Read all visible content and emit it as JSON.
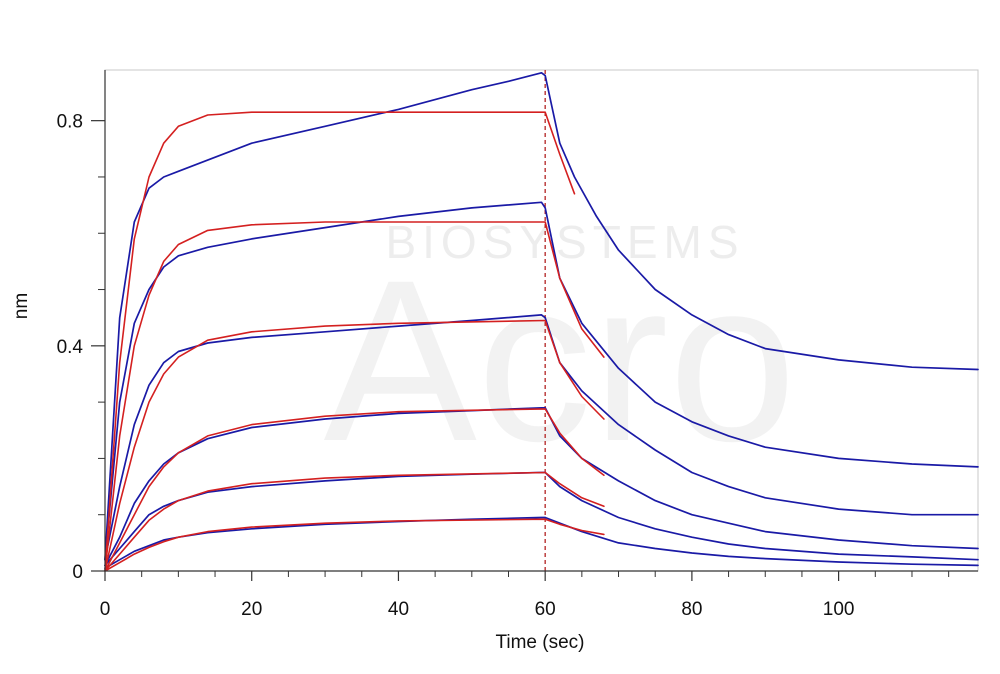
{
  "chart_data": {
    "type": "line",
    "title": "",
    "xlabel": "Time (sec)",
    "ylabel": "nm",
    "xlim": [
      0,
      119
    ],
    "ylim": [
      0,
      0.89
    ],
    "x_ticks": [
      0,
      20,
      40,
      60,
      80,
      100
    ],
    "x_tick_labels": [
      "0",
      "20",
      "40",
      "60",
      "80",
      "100"
    ],
    "y_ticks": [
      0,
      0.4,
      0.8
    ],
    "y_tick_labels": [
      "0",
      "0.4",
      "0.8"
    ],
    "grid": false,
    "legend": "none",
    "annotations": [
      {
        "type": "vertical-line",
        "x": 60,
        "style": "dashed",
        "color": "#b22222"
      }
    ],
    "watermark": {
      "brand": "Acro",
      "subtitle": "BIOSYSTEMS"
    },
    "colors": {
      "measured": "#1a1aa6",
      "fit": "#d42020",
      "axis": "#333333",
      "frame": "#c8c8c8"
    },
    "series": [
      {
        "name": "measured-1",
        "role": "measured",
        "points": [
          [
            0,
            0.02
          ],
          [
            2,
            0.45
          ],
          [
            4,
            0.62
          ],
          [
            6,
            0.68
          ],
          [
            8,
            0.7
          ],
          [
            10,
            0.71
          ],
          [
            14,
            0.73
          ],
          [
            20,
            0.76
          ],
          [
            30,
            0.79
          ],
          [
            40,
            0.82
          ],
          [
            50,
            0.855
          ],
          [
            55,
            0.87
          ],
          [
            59.5,
            0.885
          ],
          [
            60,
            0.88
          ],
          [
            62,
            0.76
          ],
          [
            64,
            0.7
          ],
          [
            67,
            0.63
          ],
          [
            70,
            0.57
          ],
          [
            75,
            0.5
          ],
          [
            80,
            0.455
          ],
          [
            85,
            0.42
          ],
          [
            90,
            0.395
          ],
          [
            100,
            0.375
          ],
          [
            110,
            0.362
          ],
          [
            119,
            0.358
          ]
        ]
      },
      {
        "name": "fit-1",
        "role": "fit",
        "points": [
          [
            0,
            0
          ],
          [
            2,
            0.37
          ],
          [
            4,
            0.59
          ],
          [
            6,
            0.7
          ],
          [
            8,
            0.76
          ],
          [
            10,
            0.79
          ],
          [
            14,
            0.81
          ],
          [
            20,
            0.815
          ],
          [
            40,
            0.815
          ],
          [
            60,
            0.815
          ],
          [
            62,
            0.74
          ],
          [
            64,
            0.67
          ]
        ]
      },
      {
        "name": "measured-2",
        "role": "measured",
        "points": [
          [
            0,
            0.02
          ],
          [
            2,
            0.3
          ],
          [
            4,
            0.44
          ],
          [
            6,
            0.5
          ],
          [
            8,
            0.54
          ],
          [
            10,
            0.56
          ],
          [
            14,
            0.575
          ],
          [
            20,
            0.59
          ],
          [
            30,
            0.61
          ],
          [
            40,
            0.63
          ],
          [
            50,
            0.645
          ],
          [
            59.5,
            0.655
          ],
          [
            60,
            0.645
          ],
          [
            62,
            0.52
          ],
          [
            65,
            0.44
          ],
          [
            70,
            0.36
          ],
          [
            75,
            0.3
          ],
          [
            80,
            0.265
          ],
          [
            85,
            0.24
          ],
          [
            90,
            0.22
          ],
          [
            100,
            0.2
          ],
          [
            110,
            0.19
          ],
          [
            119,
            0.185
          ]
        ]
      },
      {
        "name": "fit-2",
        "role": "fit",
        "points": [
          [
            0,
            0
          ],
          [
            2,
            0.24
          ],
          [
            4,
            0.4
          ],
          [
            6,
            0.49
          ],
          [
            8,
            0.55
          ],
          [
            10,
            0.58
          ],
          [
            14,
            0.605
          ],
          [
            20,
            0.615
          ],
          [
            30,
            0.62
          ],
          [
            40,
            0.62
          ],
          [
            60,
            0.62
          ],
          [
            62,
            0.52
          ],
          [
            65,
            0.43
          ],
          [
            68,
            0.38
          ]
        ]
      },
      {
        "name": "measured-3",
        "role": "measured",
        "points": [
          [
            0,
            0.02
          ],
          [
            2,
            0.15
          ],
          [
            4,
            0.26
          ],
          [
            6,
            0.33
          ],
          [
            8,
            0.37
          ],
          [
            10,
            0.39
          ],
          [
            14,
            0.405
          ],
          [
            20,
            0.415
          ],
          [
            30,
            0.425
          ],
          [
            40,
            0.435
          ],
          [
            50,
            0.445
          ],
          [
            59.5,
            0.455
          ],
          [
            60,
            0.45
          ],
          [
            62,
            0.37
          ],
          [
            65,
            0.32
          ],
          [
            70,
            0.26
          ],
          [
            75,
            0.215
          ],
          [
            80,
            0.175
          ],
          [
            85,
            0.15
          ],
          [
            90,
            0.13
          ],
          [
            100,
            0.11
          ],
          [
            110,
            0.1
          ],
          [
            119,
            0.1
          ]
        ]
      },
      {
        "name": "fit-3",
        "role": "fit",
        "points": [
          [
            0,
            0
          ],
          [
            2,
            0.12
          ],
          [
            4,
            0.22
          ],
          [
            6,
            0.3
          ],
          [
            8,
            0.35
          ],
          [
            10,
            0.38
          ],
          [
            14,
            0.41
          ],
          [
            20,
            0.425
          ],
          [
            30,
            0.435
          ],
          [
            40,
            0.44
          ],
          [
            60,
            0.445
          ],
          [
            62,
            0.37
          ],
          [
            65,
            0.31
          ],
          [
            68,
            0.27
          ]
        ]
      },
      {
        "name": "measured-4",
        "role": "measured",
        "points": [
          [
            0,
            0.01
          ],
          [
            2,
            0.06
          ],
          [
            4,
            0.12
          ],
          [
            6,
            0.16
          ],
          [
            8,
            0.19
          ],
          [
            10,
            0.21
          ],
          [
            14,
            0.235
          ],
          [
            20,
            0.255
          ],
          [
            30,
            0.27
          ],
          [
            40,
            0.28
          ],
          [
            50,
            0.285
          ],
          [
            59.5,
            0.29
          ],
          [
            60,
            0.29
          ],
          [
            62,
            0.24
          ],
          [
            65,
            0.2
          ],
          [
            70,
            0.16
          ],
          [
            75,
            0.125
          ],
          [
            80,
            0.1
          ],
          [
            85,
            0.085
          ],
          [
            90,
            0.07
          ],
          [
            100,
            0.055
          ],
          [
            110,
            0.045
          ],
          [
            119,
            0.04
          ]
        ]
      },
      {
        "name": "fit-4",
        "role": "fit",
        "points": [
          [
            0,
            0
          ],
          [
            2,
            0.05
          ],
          [
            4,
            0.1
          ],
          [
            6,
            0.15
          ],
          [
            8,
            0.185
          ],
          [
            10,
            0.21
          ],
          [
            14,
            0.24
          ],
          [
            20,
            0.26
          ],
          [
            30,
            0.275
          ],
          [
            40,
            0.283
          ],
          [
            60,
            0.288
          ],
          [
            62,
            0.245
          ],
          [
            65,
            0.2
          ],
          [
            68,
            0.17
          ]
        ]
      },
      {
        "name": "measured-5",
        "role": "measured",
        "points": [
          [
            0,
            0.01
          ],
          [
            2,
            0.04
          ],
          [
            4,
            0.07
          ],
          [
            6,
            0.1
          ],
          [
            8,
            0.115
          ],
          [
            10,
            0.125
          ],
          [
            14,
            0.14
          ],
          [
            20,
            0.15
          ],
          [
            30,
            0.16
          ],
          [
            40,
            0.168
          ],
          [
            50,
            0.172
          ],
          [
            59.5,
            0.175
          ],
          [
            60,
            0.175
          ],
          [
            62,
            0.15
          ],
          [
            65,
            0.125
          ],
          [
            70,
            0.095
          ],
          [
            75,
            0.075
          ],
          [
            80,
            0.06
          ],
          [
            85,
            0.048
          ],
          [
            90,
            0.04
          ],
          [
            100,
            0.03
          ],
          [
            110,
            0.025
          ],
          [
            119,
            0.02
          ]
        ]
      },
      {
        "name": "fit-5",
        "role": "fit",
        "points": [
          [
            0,
            0
          ],
          [
            2,
            0.03
          ],
          [
            4,
            0.06
          ],
          [
            6,
            0.09
          ],
          [
            8,
            0.11
          ],
          [
            10,
            0.125
          ],
          [
            14,
            0.142
          ],
          [
            20,
            0.155
          ],
          [
            30,
            0.165
          ],
          [
            40,
            0.17
          ],
          [
            60,
            0.175
          ],
          [
            62,
            0.155
          ],
          [
            65,
            0.13
          ],
          [
            68,
            0.115
          ]
        ]
      },
      {
        "name": "measured-6",
        "role": "measured",
        "points": [
          [
            0,
            0.005
          ],
          [
            2,
            0.02
          ],
          [
            4,
            0.035
          ],
          [
            6,
            0.045
          ],
          [
            8,
            0.055
          ],
          [
            10,
            0.06
          ],
          [
            14,
            0.068
          ],
          [
            20,
            0.075
          ],
          [
            30,
            0.083
          ],
          [
            40,
            0.088
          ],
          [
            50,
            0.092
          ],
          [
            59.5,
            0.095
          ],
          [
            60,
            0.095
          ],
          [
            62,
            0.085
          ],
          [
            65,
            0.07
          ],
          [
            70,
            0.05
          ],
          [
            75,
            0.04
          ],
          [
            80,
            0.032
          ],
          [
            85,
            0.026
          ],
          [
            90,
            0.022
          ],
          [
            100,
            0.016
          ],
          [
            110,
            0.012
          ],
          [
            119,
            0.01
          ]
        ]
      },
      {
        "name": "fit-6",
        "role": "fit",
        "points": [
          [
            0,
            0
          ],
          [
            2,
            0.015
          ],
          [
            4,
            0.03
          ],
          [
            6,
            0.042
          ],
          [
            8,
            0.052
          ],
          [
            10,
            0.06
          ],
          [
            14,
            0.07
          ],
          [
            20,
            0.078
          ],
          [
            30,
            0.085
          ],
          [
            40,
            0.089
          ],
          [
            60,
            0.092
          ],
          [
            62,
            0.083
          ],
          [
            65,
            0.072
          ],
          [
            68,
            0.065
          ]
        ]
      }
    ]
  }
}
